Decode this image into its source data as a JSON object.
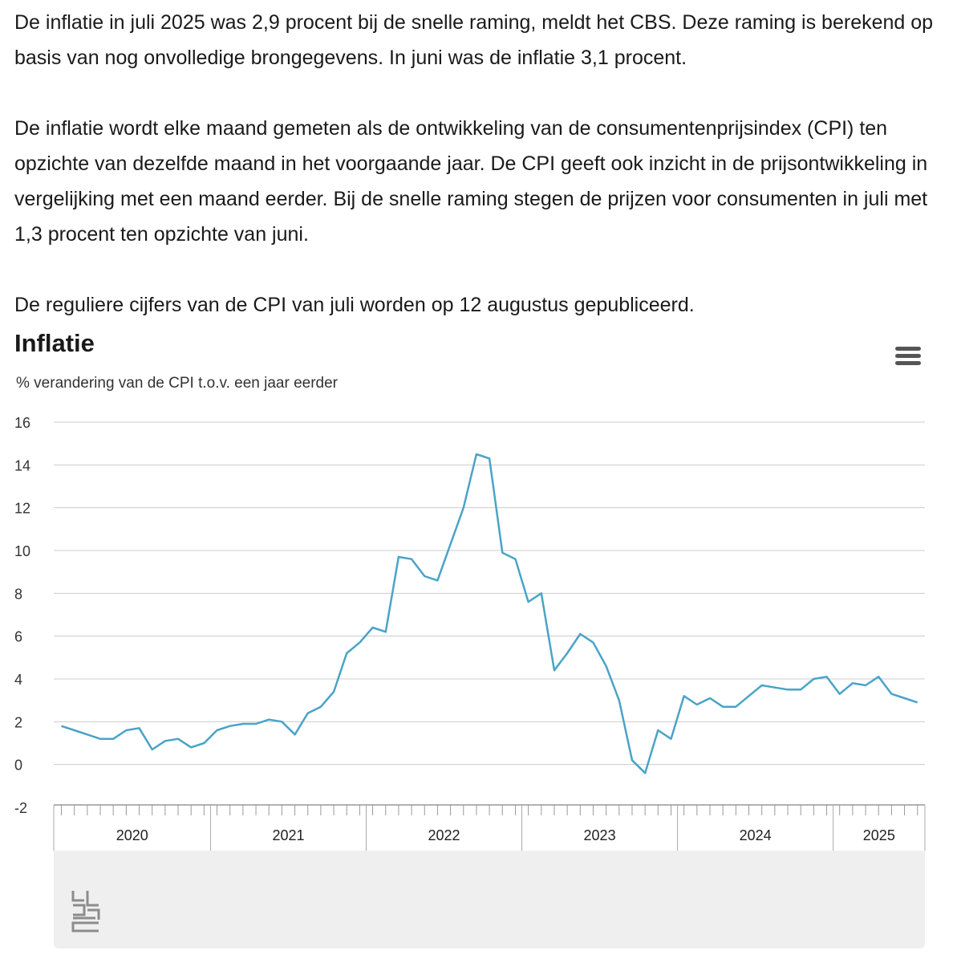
{
  "article": {
    "paragraphs": [
      "De inflatie in juli 2025 was 2,9 procent bij de snelle raming, meldt het CBS. Deze raming is berekend op basis van nog onvolledige brongegevens. In juni was de inflatie 3,1 procent.",
      "De inflatie wordt elke maand gemeten als de ontwikkeling van de consumentenprijsindex (CPI) ten opzichte van dezelfde maand in het voorgaande jaar. De CPI geeft ook inzicht in de prijsontwikkeling in vergelijking met een maand eerder. Bij de snelle raming stegen de prijzen voor consumenten in juli met 1,3 procent ten opzichte van juni.",
      "De reguliere cijfers van de CPI van juli worden op 12 augustus gepubliceerd."
    ]
  },
  "chart_menu_icon": "hamburger-menu-icon",
  "logo": "cbs-logo",
  "colors": {
    "line": "#4aa3c8",
    "grid": "#cccccc",
    "axis": "#999999",
    "panel": "#efefef"
  },
  "chart_data": {
    "type": "line",
    "title": "Inflatie",
    "subtitle": "% verandering van de CPI t.o.v. een jaar eerder",
    "ylim": [
      -2,
      16
    ],
    "yticks": [
      "16",
      "14",
      "12",
      "10",
      "8",
      "6",
      "4",
      "2",
      "0",
      "-2"
    ],
    "year_labels": [
      "2020",
      "2021",
      "2022",
      "2023",
      "2024",
      "2025"
    ],
    "grid": true,
    "legend": "none",
    "x": [
      "2020-01",
      "2020-02",
      "2020-03",
      "2020-04",
      "2020-05",
      "2020-06",
      "2020-07",
      "2020-08",
      "2020-09",
      "2020-10",
      "2020-11",
      "2020-12",
      "2021-01",
      "2021-02",
      "2021-03",
      "2021-04",
      "2021-05",
      "2021-06",
      "2021-07",
      "2021-08",
      "2021-09",
      "2021-10",
      "2021-11",
      "2021-12",
      "2022-01",
      "2022-02",
      "2022-03",
      "2022-04",
      "2022-05",
      "2022-06",
      "2022-07",
      "2022-08",
      "2022-09",
      "2022-10",
      "2022-11",
      "2022-12",
      "2023-01",
      "2023-02",
      "2023-03",
      "2023-04",
      "2023-05",
      "2023-06",
      "2023-07",
      "2023-08",
      "2023-09",
      "2023-10",
      "2023-11",
      "2023-12",
      "2024-01",
      "2024-02",
      "2024-03",
      "2024-04",
      "2024-05",
      "2024-06",
      "2024-07",
      "2024-08",
      "2024-09",
      "2024-10",
      "2024-11",
      "2024-12",
      "2025-01",
      "2025-02",
      "2025-03",
      "2025-04",
      "2025-05",
      "2025-06",
      "2025-07"
    ],
    "series": [
      {
        "values": [
          1.8,
          1.6,
          1.4,
          1.2,
          1.2,
          1.6,
          1.7,
          0.7,
          1.1,
          1.2,
          0.8,
          1.0,
          1.6,
          1.8,
          1.9,
          1.9,
          2.1,
          2.0,
          1.4,
          2.4,
          2.7,
          3.4,
          5.2,
          5.7,
          6.4,
          6.2,
          9.7,
          9.6,
          8.8,
          8.6,
          10.3,
          12.0,
          14.5,
          14.3,
          9.9,
          9.6,
          7.6,
          8.0,
          4.4,
          5.2,
          6.1,
          5.7,
          4.6,
          3.0,
          0.2,
          -0.4,
          1.6,
          1.2,
          3.2,
          2.8,
          3.1,
          2.7,
          2.7,
          3.2,
          3.7,
          3.6,
          3.5,
          3.5,
          4.0,
          4.1,
          3.3,
          3.8,
          3.7,
          4.1,
          3.3,
          3.1,
          2.9
        ]
      }
    ]
  }
}
